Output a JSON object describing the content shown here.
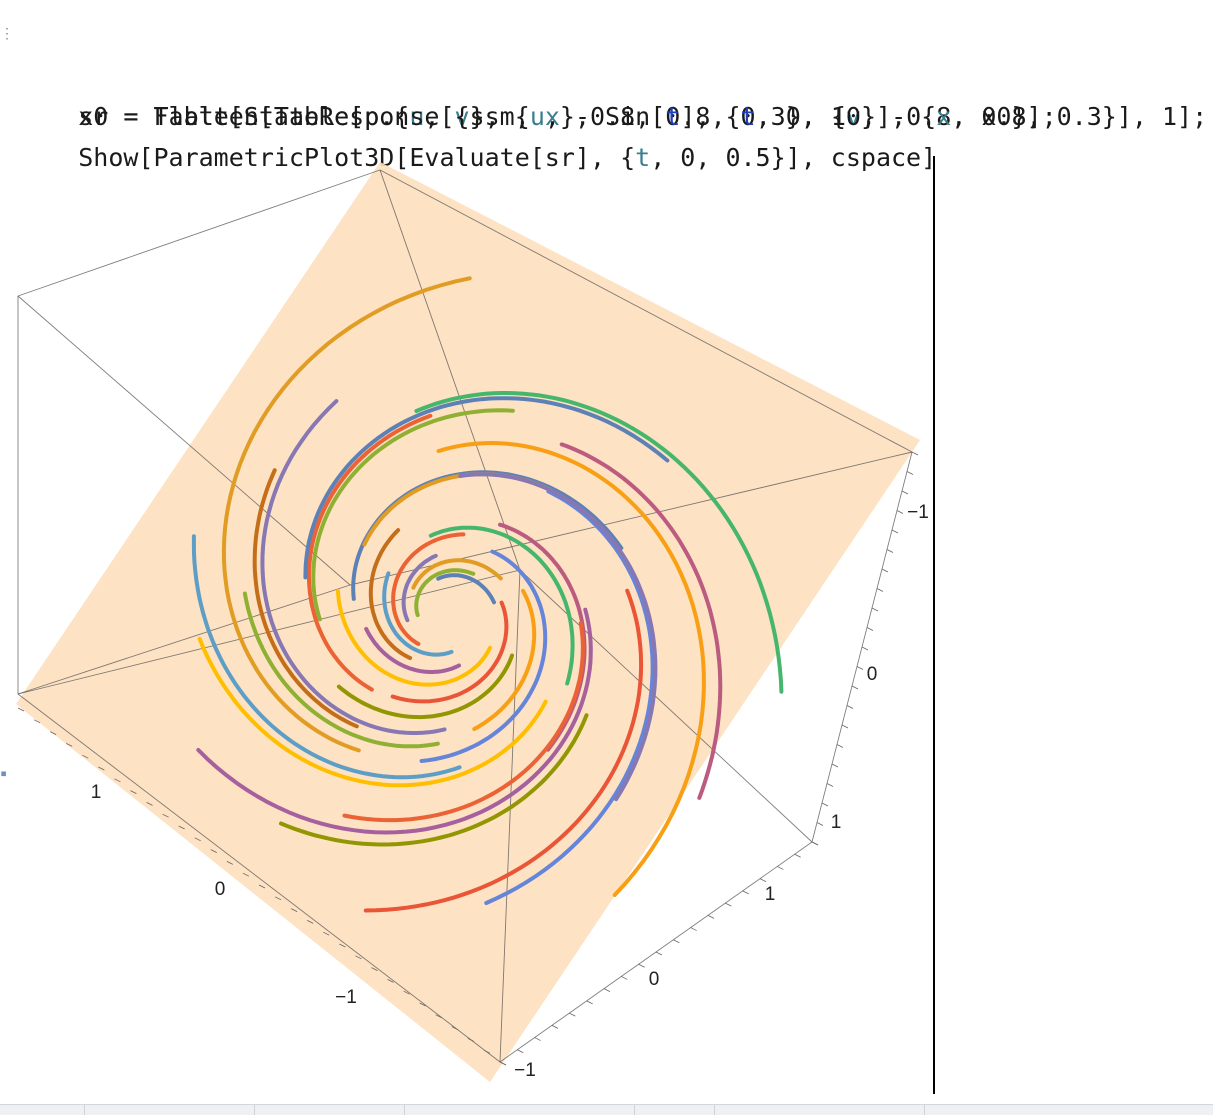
{
  "notebook": {
    "input_lines": [
      [
        {
          "t": "x0",
          "c": "kw"
        },
        {
          "t": " = ",
          "c": "kw"
        },
        {
          "t": "Flatten[Table[p.{",
          "c": "kw"
        },
        {
          "t": "u",
          "c": "var-local"
        },
        {
          "t": ", ",
          "c": "kw"
        },
        {
          "t": "v",
          "c": "var-local"
        },
        {
          "t": "}, {",
          "c": "kw"
        },
        {
          "t": "u",
          "c": "var-local"
        },
        {
          "t": ", -0.8, 0.8, 0.3}, {",
          "c": "kw"
        },
        {
          "t": "v",
          "c": "var-local"
        },
        {
          "t": ", -0.8, 0.8, 0.3}], 1];",
          "c": "kw"
        }
      ],
      [
        {
          "t": "sr",
          "c": "kw"
        },
        {
          "t": " = ",
          "c": "kw"
        },
        {
          "t": "Table[StateResponse[{ssm, ",
          "c": "kw"
        },
        {
          "t": "x",
          "c": "var-local"
        },
        {
          "t": "}, Sin[",
          "c": "kw"
        },
        {
          "t": "t",
          "c": "var-blue"
        },
        {
          "t": "], {",
          "c": "kw"
        },
        {
          "t": "t",
          "c": "var-blue"
        },
        {
          "t": ", 0, 10}], {",
          "c": "kw"
        },
        {
          "t": "x",
          "c": "var-local"
        },
        {
          "t": ", x0}];",
          "c": "kw"
        }
      ],
      [
        {
          "t": "Show[ParametricPlot3D[Evaluate[sr], {",
          "c": "kw"
        },
        {
          "t": "t",
          "c": "var-local"
        },
        {
          "t": ", 0, 0.5}], cspace]",
          "c": "kw"
        }
      ]
    ]
  },
  "plot": {
    "plane_color": "#fde0bf",
    "box_color": "#555555",
    "axis_a_labels": [
      "1",
      "0",
      "−1"
    ],
    "axis_b_labels": [
      "1",
      "0",
      "−1"
    ],
    "axis_c_labels": [
      "−1",
      "0",
      "1"
    ],
    "palette": [
      "#5e81b5",
      "#e19c24",
      "#8fb032",
      "#eb6235",
      "#8778b3",
      "#c56e1a",
      "#5d9ec7",
      "#ffbf00",
      "#a5609d",
      "#929600",
      "#e95536",
      "#6685d9",
      "#f89f13",
      "#bc5b80",
      "#47b66d"
    ]
  }
}
